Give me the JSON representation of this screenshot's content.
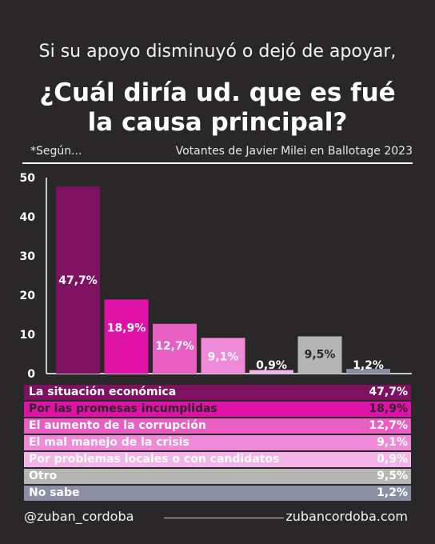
{
  "header": {
    "subtitle": "Si su apoyo disminuyó o dejó de apoyar,",
    "title_line1": "¿Cuál diría ud. que es fué",
    "title_line2": "la causa principal?",
    "note_left": "*Según...",
    "note_right": "Votantes de Javier Milei en Ballotage 2023"
  },
  "chart_data": {
    "type": "bar",
    "categories": [
      "La situación económica",
      "Por las promesas incumplidas",
      "El aumento de la corrupción",
      "El mal manejo de la crisis",
      "Por problemas locales o con candidatos",
      "Otro",
      "No sabe"
    ],
    "values": [
      47.7,
      18.9,
      12.7,
      9.1,
      0.9,
      9.5,
      1.2
    ],
    "data_labels": [
      "47,7%",
      "18,9%",
      "12,7%",
      "9,1%",
      "0,9%",
      "9,5%",
      "1,2%"
    ],
    "colors": [
      "#7e1160",
      "#e011a7",
      "#e85ec2",
      "#f08ad8",
      "#f4b4e8",
      "#b5b5b5",
      "#8a8fa6"
    ],
    "label_text_colors": [
      "#ffffff",
      "#ffffff",
      "#ffffff",
      "#ffffff",
      "#ffffff",
      "#2a2728",
      "#ffffff"
    ],
    "y_ticks": [
      "0",
      "10",
      "20",
      "30",
      "40",
      "50"
    ],
    "ylim": [
      0,
      50
    ],
    "grid": false,
    "legend": "bottom"
  },
  "legend_text_colors": [
    "#ffffff",
    "#2a2728",
    "#ffffff",
    "#ffffff",
    "#ffffff",
    "#ffffff",
    "#ffffff"
  ],
  "footer": {
    "handle": "@zuban_cordoba",
    "site": "zubancordoba.com"
  }
}
